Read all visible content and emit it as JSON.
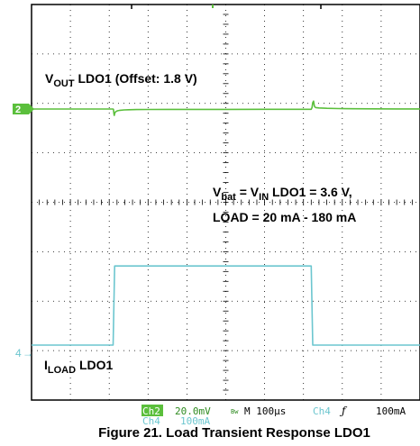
{
  "chart_data": {
    "type": "line",
    "title": "",
    "xlabel": "",
    "ylabel": "",
    "grid": true,
    "time_per_div_us": 100,
    "x_divisions": 10,
    "y_divisions": 8,
    "series": [
      {
        "name": "",
        "label_main": "V",
        "label_sub": "OUT",
        "label_rest": " LDO1 (Offset: 1.8 V)",
        "channel_marker": "2",
        "color": "#5bbf3c",
        "scale": "20.0mV",
        "x": [
          0,
          210,
          211,
          212,
          213,
          214,
          216,
          218,
          222,
          228,
          238,
          250,
          270,
          300,
          350,
          400,
          500,
          600,
          700,
          720,
          722,
          724,
          726,
          728,
          730,
          732,
          740,
          760,
          790,
          830,
          880,
          940,
          1000
        ],
        "y": [
          0,
          0,
          -0.2,
          -1.9,
          -2.6,
          -1.8,
          -1.2,
          -0.9,
          -0.68,
          -0.5,
          -0.38,
          -0.29,
          -0.22,
          -0.18,
          -0.16,
          -0.14,
          -0.13,
          -0.12,
          -0.12,
          -0.12,
          0.6,
          2.6,
          3.2,
          1.2,
          0.75,
          0.6,
          0.42,
          0.28,
          0.18,
          0.1,
          0.06,
          0.03,
          0.02
        ]
      },
      {
        "name": "",
        "label_main": "I",
        "label_sub": "LOAD",
        "label_rest": " LDO1",
        "channel_marker": "4",
        "color": "#6cc6cf",
        "scale": "100mA",
        "x": [
          0,
          210,
          214,
          720,
          724,
          1000
        ],
        "y": [
          20,
          20,
          180,
          180,
          20,
          20
        ]
      }
    ],
    "annotation": {
      "line1_a": "V",
      "line1_a_sub": "bat",
      "line1_b": " = V",
      "line1_b_sub": "IN",
      "line1_c": " LDO1 = 3.6 V,",
      "line2": "LOAD = 20 mA - 180 mA"
    },
    "status_bar": {
      "ch2_badge": "Ch2",
      "ch2_scale": "20.0mV",
      "bw_symbol": "Bw",
      "timebase": "M 100µs",
      "trigger_source": "Ch4",
      "trigger_slope": "ƒ",
      "trigger_level": "100mA",
      "ch4_label": "Ch4",
      "ch4_scale": "100mA"
    },
    "figure_caption": "Figure 21. Load Transient Response LDO1"
  }
}
